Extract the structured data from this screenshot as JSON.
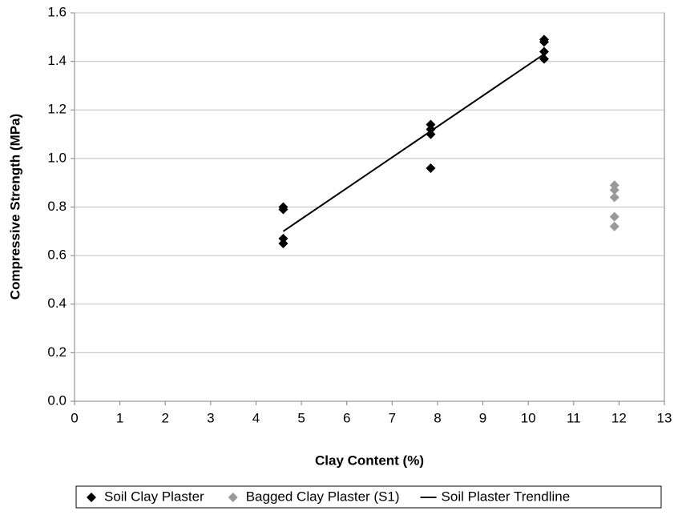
{
  "chart_data": {
    "type": "scatter",
    "x_label": "Clay Content (%)",
    "y_label": "Compressive Strength (MPa)",
    "xlim": [
      0,
      13
    ],
    "xticks": [
      0,
      1,
      2,
      3,
      4,
      5,
      6,
      7,
      8,
      9,
      10,
      11,
      12,
      13
    ],
    "ylim": [
      0,
      1.6
    ],
    "yticks": [
      {
        "value": 0,
        "label": "0.0"
      },
      {
        "value": 0.2,
        "label": "0.2"
      },
      {
        "value": 0.4,
        "label": "0.4"
      },
      {
        "value": 0.6,
        "label": "0.6"
      },
      {
        "value": 0.8,
        "label": "0.8"
      },
      {
        "value": 1,
        "label": "1.0"
      },
      {
        "value": 1.2,
        "label": "1.2"
      },
      {
        "value": 1.4,
        "label": "1.4"
      },
      {
        "value": 1.6,
        "label": "1.6"
      }
    ],
    "grid": true,
    "legend": "bottom",
    "series": [
      {
        "name": "Soil Clay Plaster",
        "color": "#000000",
        "mode": "markers",
        "x": [
          4.6,
          4.6,
          4.6,
          4.6,
          7.85,
          7.85,
          7.85,
          7.85,
          10.35,
          10.35,
          10.35,
          10.35
        ],
        "values": [
          0.8,
          0.79,
          0.67,
          0.65,
          1.14,
          1.12,
          1.1,
          0.96,
          1.49,
          1.48,
          1.44,
          1.41
        ]
      },
      {
        "name": "Bagged Clay Plaster (S1)",
        "color": "#999999",
        "mode": "markers",
        "x": [
          11.9,
          11.9,
          11.9,
          11.9,
          11.9
        ],
        "values": [
          0.89,
          0.87,
          0.84,
          0.76,
          0.72
        ]
      },
      {
        "name": "Soil Plaster Trendline",
        "color": "#000000",
        "mode": "line",
        "x": [
          4.6,
          10.35
        ],
        "values": [
          0.7,
          1.43
        ]
      }
    ]
  }
}
